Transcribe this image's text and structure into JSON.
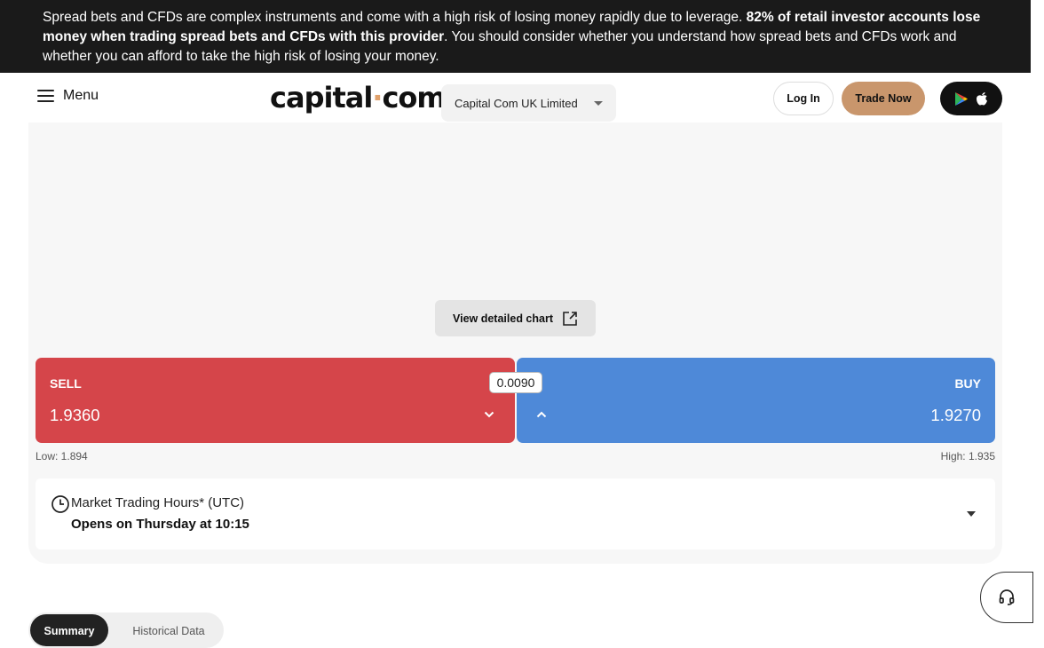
{
  "risk_banner": {
    "text_start": "Spread bets and CFDs are complex instruments and come with a high risk of losing money rapidly due to leverage. ",
    "text_bold": "82% of retail investor accounts lose money when trading spread bets and CFDs with this provider",
    "text_end": ". You should consider whether you understand how spread bets and CFDs work and whether you can afford to take the high risk of losing your money."
  },
  "header": {
    "menu_label": "Menu",
    "logo_main": "capital",
    "logo_dot": "·",
    "logo_tld": "com",
    "entity": "Capital Com UK Limited",
    "login_label": "Log In",
    "trade_label": "Trade Now"
  },
  "chart": {
    "detail_label": "View detailed chart"
  },
  "quote": {
    "sell_label": "SELL",
    "sell_price": "1.9360",
    "buy_label": "BUY",
    "buy_price": "1.9270",
    "spread": "0.0090",
    "low": "Low: 1.894",
    "high": "High: 1.935"
  },
  "hours": {
    "title": "Market Trading Hours* (UTC)",
    "status": "Opens on Thursday at 10:15"
  },
  "tabs": [
    {
      "label": "Summary"
    },
    {
      "label": "Historical Data"
    }
  ],
  "colors": {
    "sell": "#d5454a",
    "buy": "#4e89d8",
    "accent": "#c9966c",
    "banner": "#1a1a1a"
  }
}
